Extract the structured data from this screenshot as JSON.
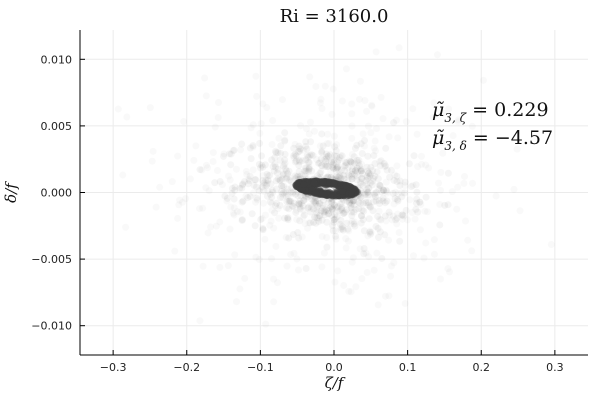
{
  "chart_data": {
    "type": "scatter",
    "title": "Ri = 3160.0",
    "xlabel": "ζ/f",
    "ylabel": "δ/f",
    "xlim": [
      -0.345,
      0.345
    ],
    "ylim": [
      -0.0122,
      0.0122
    ],
    "x_ticks": [
      -0.3,
      -0.2,
      -0.1,
      0.0,
      0.1,
      0.2,
      0.3
    ],
    "x_tick_labels": [
      "−0.3",
      "−0.2",
      "−0.1",
      "0.0",
      "0.1",
      "0.2",
      "0.3"
    ],
    "y_ticks": [
      0.01,
      0.005,
      0.0,
      -0.005,
      -0.01
    ],
    "y_tick_labels": [
      "0.010",
      "0.005",
      "0.000",
      "−0.005",
      "−0.010"
    ],
    "grid": true,
    "legend": "none",
    "point_color": "#3d3d3d",
    "cloud": {
      "center": [
        -0.01,
        0.0003
      ],
      "core_halfwidth": [
        0.04,
        0.0005
      ],
      "tilt_dy_per_dx": -0.006,
      "extent_x": [
        -0.3,
        0.3
      ],
      "extent_y": [
        -0.011,
        0.011
      ]
    },
    "annotations": [
      {
        "base": "μ̃",
        "sub": "3, ζ",
        "text": " = 0.229"
      },
      {
        "base": "μ̃",
        "sub": "3, δ",
        "text": " = −4.57"
      }
    ]
  }
}
